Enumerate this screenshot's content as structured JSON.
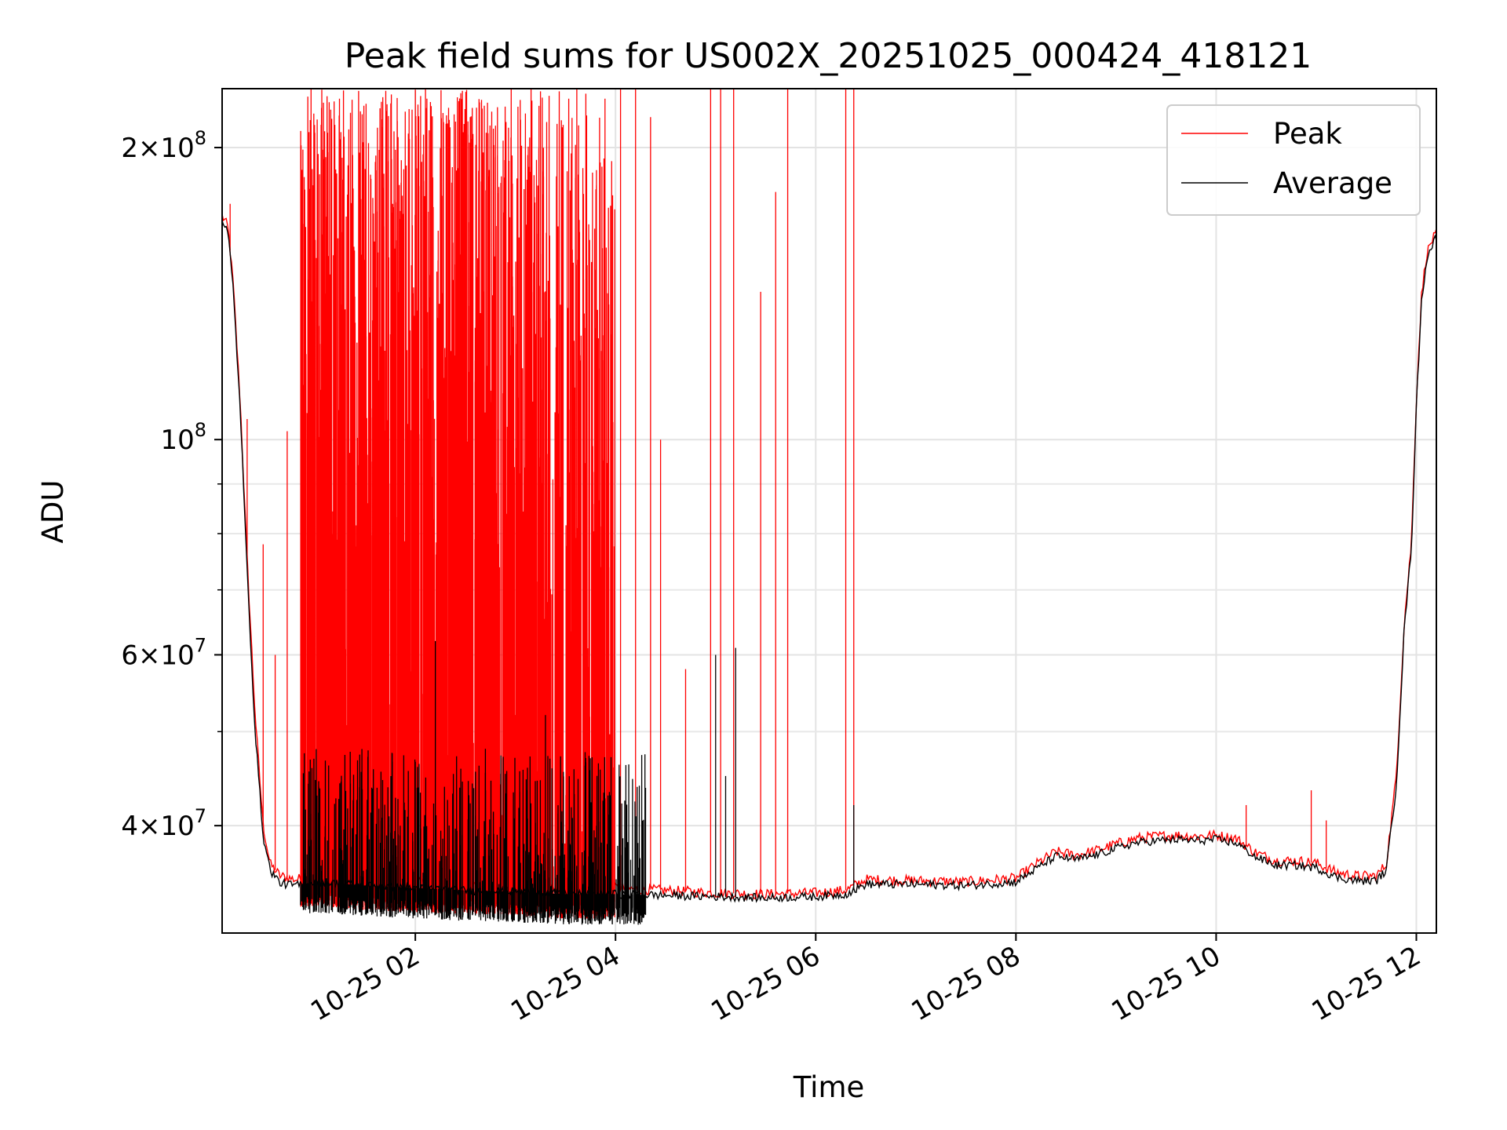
{
  "chart_data": {
    "type": "line",
    "title": "Peak field sums for US002X_20251025_000424_418121",
    "xlabel": "Time",
    "ylabel": "ADU",
    "yscale": "log",
    "ylim": [
      31000000,
      230000000
    ],
    "xlim_hours": [
      0.07,
      12.2
    ],
    "grid": true,
    "legend_location": "upper right",
    "x_ticks": [
      {
        "value": 2,
        "label": "10-25 02"
      },
      {
        "value": 4,
        "label": "10-25 04"
      },
      {
        "value": 6,
        "label": "10-25 06"
      },
      {
        "value": 8,
        "label": "10-25 08"
      },
      {
        "value": 10,
        "label": "10-25 10"
      },
      {
        "value": 12,
        "label": "10-25 12"
      }
    ],
    "y_ticks": [
      {
        "value": 40000000,
        "mantissa": "4",
        "exponent": "7"
      },
      {
        "value": 60000000,
        "mantissa": "6",
        "exponent": "7"
      },
      {
        "value": 100000000,
        "mantissa": "",
        "exponent": "8"
      },
      {
        "value": 200000000,
        "mantissa": "2",
        "exponent": "8"
      }
    ],
    "y_minor_ticks": [
      50000000,
      70000000,
      80000000,
      90000000
    ],
    "series": [
      {
        "name": "Peak",
        "color": "#ff0000",
        "x": [
          0.07,
          0.1,
          0.13,
          0.18,
          0.25,
          0.32,
          0.4,
          0.48,
          0.55,
          0.65,
          0.8,
          1.0,
          1.5,
          2.0,
          2.5,
          3.0,
          3.5,
          4.0,
          4.5,
          5.0,
          5.5,
          6.0,
          6.3,
          6.5,
          7.0,
          7.5,
          8.0,
          8.2,
          8.4,
          8.6,
          8.8,
          9.0,
          9.2,
          9.4,
          9.6,
          9.8,
          10.0,
          10.2,
          10.4,
          10.6,
          10.8,
          11.0,
          11.2,
          11.4,
          11.6,
          11.7,
          11.8,
          11.88,
          11.95,
          12.0,
          12.05,
          12.1,
          12.15,
          12.2
        ],
        "values": [
          170000000,
          168000000,
          165000000,
          145000000,
          110000000,
          75000000,
          52000000,
          40000000,
          36500000,
          35500000,
          35200000,
          35500000,
          35200000,
          35000000,
          34900000,
          34700000,
          34500000,
          34500000,
          34300000,
          34100000,
          34000000,
          34100000,
          34300000,
          35200000,
          35100000,
          35000000,
          35300000,
          36500000,
          37600000,
          37300000,
          37700000,
          38300000,
          38800000,
          39000000,
          39100000,
          39000000,
          39100000,
          38800000,
          37500000,
          36800000,
          36800000,
          36600000,
          35800000,
          35500000,
          35500000,
          36500000,
          45000000,
          65000000,
          78000000,
          110000000,
          140000000,
          155000000,
          160000000,
          163000000
        ],
        "spikes": [
          {
            "x": 0.15,
            "value": 175000000
          },
          {
            "x": 0.32,
            "value": 105000000
          },
          {
            "x": 0.48,
            "value": 78000000
          },
          {
            "x": 0.6,
            "value": 60000000
          },
          {
            "x": 0.72,
            "value": 102000000
          },
          {
            "x": 4.05,
            "value": 230000000
          },
          {
            "x": 4.2,
            "value": 230000000
          },
          {
            "x": 4.35,
            "value": 215000000
          },
          {
            "x": 4.45,
            "value": 100000000
          },
          {
            "x": 4.7,
            "value": 58000000
          },
          {
            "x": 4.95,
            "value": 230000000
          },
          {
            "x": 5.05,
            "value": 230000000
          },
          {
            "x": 5.18,
            "value": 230000000
          },
          {
            "x": 5.45,
            "value": 142000000
          },
          {
            "x": 5.6,
            "value": 180000000
          },
          {
            "x": 5.72,
            "value": 230000000
          },
          {
            "x": 6.3,
            "value": 230000000
          },
          {
            "x": 6.38,
            "value": 230000000
          },
          {
            "x": 10.3,
            "value": 42000000
          },
          {
            "x": 10.95,
            "value": 43500000
          },
          {
            "x": 11.1,
            "value": 40500000
          }
        ],
        "dense_region": {
          "x_start": 0.85,
          "x_end": 4.0,
          "min": 35000000,
          "max": 230000000
        }
      },
      {
        "name": "Average",
        "color": "#000000",
        "x": [
          0.07,
          0.1,
          0.13,
          0.18,
          0.25,
          0.32,
          0.4,
          0.48,
          0.55,
          0.65,
          0.8,
          1.0,
          1.5,
          2.0,
          2.5,
          3.0,
          3.5,
          4.0,
          4.5,
          5.0,
          5.5,
          6.0,
          6.3,
          6.5,
          7.0,
          7.5,
          8.0,
          8.2,
          8.4,
          8.6,
          8.8,
          9.0,
          9.2,
          9.4,
          9.6,
          9.8,
          10.0,
          10.2,
          10.4,
          10.6,
          10.8,
          11.0,
          11.2,
          11.4,
          11.6,
          11.7,
          11.8,
          11.88,
          11.95,
          12.0,
          12.05,
          12.1,
          12.15,
          12.2
        ],
        "values": [
          168000000,
          166000000,
          163000000,
          143000000,
          108000000,
          73000000,
          50000000,
          39000000,
          36000000,
          34900000,
          34700000,
          35000000,
          34700000,
          34500000,
          34300000,
          34200000,
          34000000,
          34000000,
          33900000,
          33800000,
          33700000,
          33800000,
          34000000,
          34800000,
          34800000,
          34700000,
          35000000,
          36100000,
          37200000,
          36900000,
          37300000,
          37900000,
          38400000,
          38600000,
          38700000,
          38600000,
          38700000,
          38400000,
          37100000,
          36400000,
          36400000,
          36200000,
          35400000,
          35100000,
          35100000,
          36000000,
          44000000,
          64000000,
          77000000,
          108000000,
          138000000,
          153000000,
          158000000,
          162000000
        ],
        "spikes": [
          {
            "x": 2.2,
            "value": 62000000
          },
          {
            "x": 2.7,
            "value": 48000000
          },
          {
            "x": 3.3,
            "value": 52000000
          },
          {
            "x": 5.0,
            "value": 60000000
          },
          {
            "x": 5.2,
            "value": 61000000
          },
          {
            "x": 5.1,
            "value": 45000000
          },
          {
            "x": 6.38,
            "value": 42000000
          }
        ],
        "dense_region": {
          "x_start": 0.85,
          "x_end": 4.3,
          "min": 32000000,
          "max": 48000000
        }
      }
    ]
  }
}
